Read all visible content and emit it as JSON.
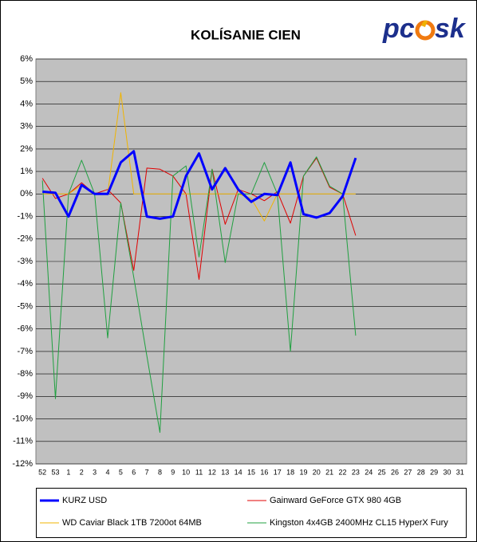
{
  "logo": [
    "pc",
    "sk"
  ],
  "chart_data": {
    "type": "line",
    "title": "KOLÍSANIE CIEN",
    "categories": [
      "52",
      "53",
      "1",
      "2",
      "3",
      "4",
      "5",
      "6",
      "7",
      "8",
      "9",
      "10",
      "11",
      "12",
      "13",
      "14",
      "15",
      "16",
      "17",
      "18",
      "19",
      "20",
      "21",
      "22",
      "23",
      "24",
      "25",
      "26",
      "27",
      "28",
      "29",
      "30",
      "31"
    ],
    "ylim": [
      -12,
      6
    ],
    "yticks": [
      {
        "value": 6,
        "label": "6%"
      },
      {
        "value": 5,
        "label": "5%"
      },
      {
        "value": 4,
        "label": "4%"
      },
      {
        "value": 3,
        "label": "3%"
      },
      {
        "value": 2,
        "label": "2%"
      },
      {
        "value": 1,
        "label": "1%"
      },
      {
        "value": 0,
        "label": "0%"
      },
      {
        "value": -1,
        "label": "-1%"
      },
      {
        "value": -2,
        "label": "-2%"
      },
      {
        "value": -3,
        "label": "-3%"
      },
      {
        "value": -4,
        "label": "-4%"
      },
      {
        "value": -5,
        "label": "-5%"
      },
      {
        "value": -6,
        "label": "-6%"
      },
      {
        "value": -7,
        "label": "-7%"
      },
      {
        "value": -8,
        "label": "-8%"
      },
      {
        "value": -9,
        "label": "-9%"
      },
      {
        "value": -10,
        "label": "-10%"
      },
      {
        "value": -11,
        "label": "-11%"
      },
      {
        "value": -12,
        "label": "-12%"
      }
    ],
    "grid": true,
    "series": [
      {
        "name": "KURZ USD",
        "color": "#0000ff",
        "width": 3,
        "values": [
          0.1,
          0.05,
          -1.0,
          0.4,
          0.0,
          0.0,
          1.4,
          1.9,
          -1.0,
          -1.1,
          -1.0,
          0.8,
          1.8,
          0.2,
          1.15,
          0.2,
          -0.35,
          0.0,
          -0.05,
          1.4,
          -0.9,
          -1.05,
          -0.85,
          -0.1,
          1.6,
          null,
          null,
          null,
          null,
          null,
          null,
          null,
          null
        ]
      },
      {
        "name": "Gainward GeForce GTX 980 4GB",
        "color": "#e00000",
        "width": 1,
        "values": [
          0.7,
          -0.2,
          0.0,
          0.5,
          0.0,
          0.2,
          -0.4,
          -3.4,
          1.15,
          1.1,
          0.8,
          0.0,
          -3.8,
          1.1,
          -1.35,
          0.2,
          0.0,
          -0.3,
          0.1,
          -1.3,
          0.8,
          1.6,
          0.3,
          0.0,
          -1.85,
          null,
          null,
          null,
          null,
          null,
          null,
          null,
          null
        ]
      },
      {
        "name": "WD Caviar Black 1TB 7200ot 64MB",
        "color": "#f0b400",
        "width": 1,
        "values": [
          0.0,
          0.0,
          0.0,
          0.4,
          0.0,
          0.0,
          4.5,
          0.0,
          0.0,
          0.0,
          0.0,
          0.0,
          0.0,
          0.0,
          0.0,
          0.0,
          -0.2,
          -1.2,
          0.0,
          0.0,
          0.0,
          0.0,
          0.0,
          0.0,
          0.0,
          null,
          null,
          null,
          null,
          null,
          null,
          null,
          null
        ]
      },
      {
        "name": "Kingston 4x4GB 2400MHz CL15 HyperX Fury",
        "color": "#20a040",
        "width": 1,
        "values": [
          0.6,
          -9.1,
          0.0,
          1.5,
          0.0,
          -6.4,
          -0.4,
          -3.7,
          -7.2,
          -10.6,
          0.8,
          1.25,
          -2.8,
          1.1,
          -3.05,
          0.0,
          0.0,
          1.4,
          0.0,
          -7.0,
          0.8,
          1.65,
          0.35,
          0.0,
          -6.3,
          null,
          null,
          null,
          null,
          null,
          null,
          null,
          null
        ]
      }
    ]
  }
}
